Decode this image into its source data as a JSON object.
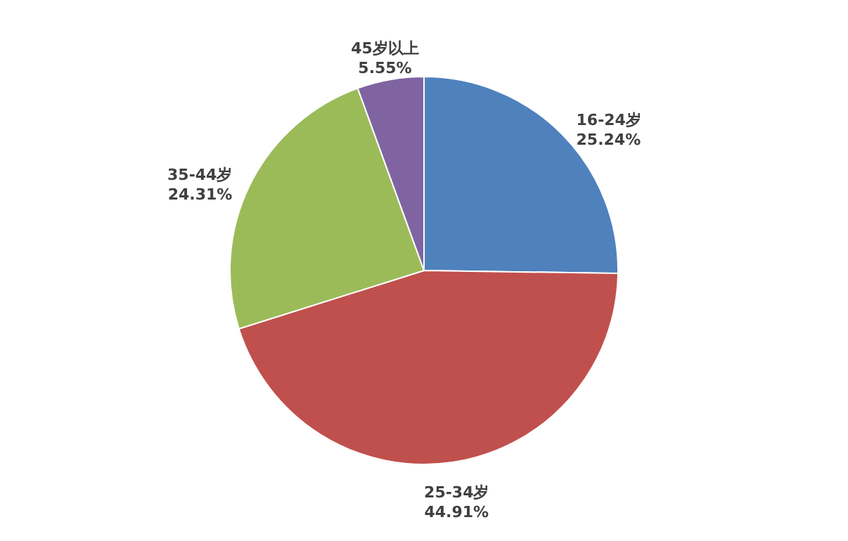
{
  "chart_data": {
    "type": "pie",
    "categories": [
      "16-24岁",
      "25-34岁",
      "35-44岁",
      "45岁以上"
    ],
    "values": [
      25.24,
      44.91,
      24.31,
      5.55
    ],
    "value_labels": [
      "25.24%",
      "44.91%",
      "24.31%",
      "5.55%"
    ],
    "colors": [
      "#4f81bd",
      "#c0504d",
      "#9bbb59",
      "#8064a2"
    ],
    "legend": false
  }
}
